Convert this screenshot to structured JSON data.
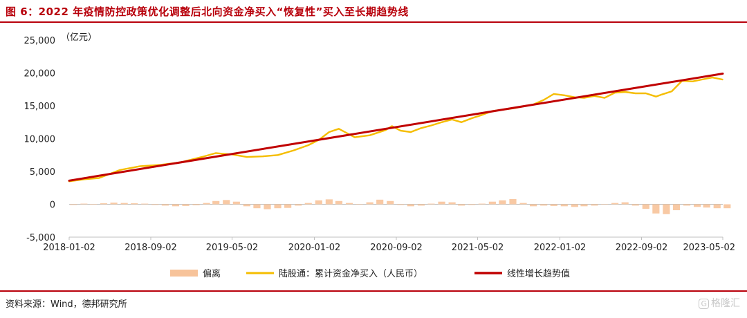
{
  "header": {
    "title": "图 6：2022 年疫情防控政策优化调整后北向资金净买入“恢复性”买入至长期趋势线"
  },
  "footer": {
    "source": "资料来源：Wind，德邦研究所",
    "watermark": "格隆汇"
  },
  "colors": {
    "title": "#b8000b",
    "deviation": "#f7c39a",
    "cumulative": "#f5bd00",
    "trend": "#c00000",
    "axis": "#bfbfbf"
  },
  "chart_data": {
    "type": "line",
    "unit_label": "（亿元）",
    "ylim": [
      -5000,
      25000
    ],
    "y_ticks": [
      -5000,
      0,
      5000,
      10000,
      15000,
      20000,
      25000
    ],
    "y_tick_labels": [
      "-5,000",
      "0",
      "5,000",
      "10,000",
      "15,000",
      "20,000",
      "25,000"
    ],
    "x_range": [
      "2018-01-02",
      "2023-05-02"
    ],
    "x_tick_labels": [
      "2018-01-02",
      "2018-09-02",
      "2019-05-02",
      "2020-01-02",
      "2020-09-02",
      "2021-05-02",
      "2022-01-02",
      "2022-09-02",
      "2023-05-02"
    ],
    "legend_position": "bottom",
    "series": [
      {
        "name": "偏离",
        "style": "bar",
        "x": [
          "2018-01",
          "2018-02",
          "2018-03",
          "2018-04",
          "2018-05",
          "2018-06",
          "2018-07",
          "2018-08",
          "2018-09",
          "2018-10",
          "2018-11",
          "2018-12",
          "2019-01",
          "2019-02",
          "2019-03",
          "2019-04",
          "2019-05",
          "2019-06",
          "2019-07",
          "2019-08",
          "2019-09",
          "2019-10",
          "2019-11",
          "2019-12",
          "2020-01",
          "2020-02",
          "2020-03",
          "2020-04",
          "2020-05",
          "2020-06",
          "2020-07",
          "2020-08",
          "2020-09",
          "2020-10",
          "2020-11",
          "2020-12",
          "2021-01",
          "2021-02",
          "2021-03",
          "2021-04",
          "2021-05",
          "2021-06",
          "2021-07",
          "2021-08",
          "2021-09",
          "2021-10",
          "2021-11",
          "2021-12",
          "2022-01",
          "2022-02",
          "2022-03",
          "2022-04",
          "2022-05",
          "2022-06",
          "2022-07",
          "2022-08",
          "2022-09",
          "2022-10",
          "2022-11",
          "2022-12",
          "2023-01",
          "2023-02",
          "2023-03",
          "2023-04",
          "2023-05"
        ],
        "values": [
          -100,
          100,
          50,
          150,
          250,
          200,
          150,
          100,
          -100,
          -200,
          -300,
          -250,
          -150,
          200,
          500,
          650,
          400,
          -300,
          -600,
          -750,
          -600,
          -550,
          -200,
          200,
          600,
          750,
          500,
          200,
          0,
          300,
          700,
          500,
          -100,
          -300,
          -200,
          100,
          400,
          300,
          -200,
          -100,
          100,
          400,
          600,
          800,
          200,
          -300,
          -200,
          -250,
          -300,
          -400,
          -300,
          -200,
          0,
          200,
          300,
          -200,
          -700,
          -1400,
          -1500,
          -900,
          -200,
          -400,
          -500,
          -600,
          -600
        ]
      },
      {
        "name": "陆股通：累计资金净买入（人民币）",
        "style": "line",
        "x": [
          "2018-01-02",
          "2018-02-15",
          "2018-04-01",
          "2018-06-01",
          "2018-08-01",
          "2018-10-01",
          "2018-12-01",
          "2019-02-01",
          "2019-03-15",
          "2019-04-01",
          "2019-05-01",
          "2019-06-15",
          "2019-08-01",
          "2019-09-15",
          "2019-11-01",
          "2019-12-15",
          "2020-01-15",
          "2020-02-15",
          "2020-03-15",
          "2020-05-01",
          "2020-06-15",
          "2020-08-01",
          "2020-08-20",
          "2020-09-15",
          "2020-10-15",
          "2020-11-15",
          "2020-12-15",
          "2021-01-15",
          "2021-02-15",
          "2021-03-15",
          "2021-04-15",
          "2021-05-15",
          "2021-06-15",
          "2021-07-15",
          "2021-08-15",
          "2021-09-15",
          "2021-10-15",
          "2021-11-15",
          "2021-12-15",
          "2022-01-15",
          "2022-02-15",
          "2022-03-15",
          "2022-04-15",
          "2022-05-15",
          "2022-06-15",
          "2022-07-15",
          "2022-08-15",
          "2022-09-15",
          "2022-10-15",
          "2022-11-01",
          "2022-12-01",
          "2023-01-01",
          "2023-02-01",
          "2023-03-01",
          "2023-04-01",
          "2023-05-01"
        ],
        "values": [
          3500,
          3800,
          4000,
          5200,
          5800,
          6000,
          6400,
          7200,
          7800,
          7700,
          7600,
          7200,
          7300,
          7500,
          8200,
          9000,
          9800,
          11000,
          11500,
          10200,
          10500,
          11300,
          11900,
          11200,
          11000,
          11600,
          12000,
          12500,
          12900,
          12500,
          13100,
          13600,
          14200,
          14400,
          14600,
          14900,
          15200,
          15900,
          16800,
          16600,
          16300,
          16200,
          16500,
          16200,
          17000,
          17100,
          16900,
          16900,
          16400,
          16700,
          17200,
          18800,
          18700,
          19000,
          19300,
          19000
        ]
      },
      {
        "name": "线性增长趋势值",
        "style": "line",
        "x": [
          "2018-01-02",
          "2023-05-02"
        ],
        "values": [
          3600,
          19900
        ]
      }
    ]
  }
}
